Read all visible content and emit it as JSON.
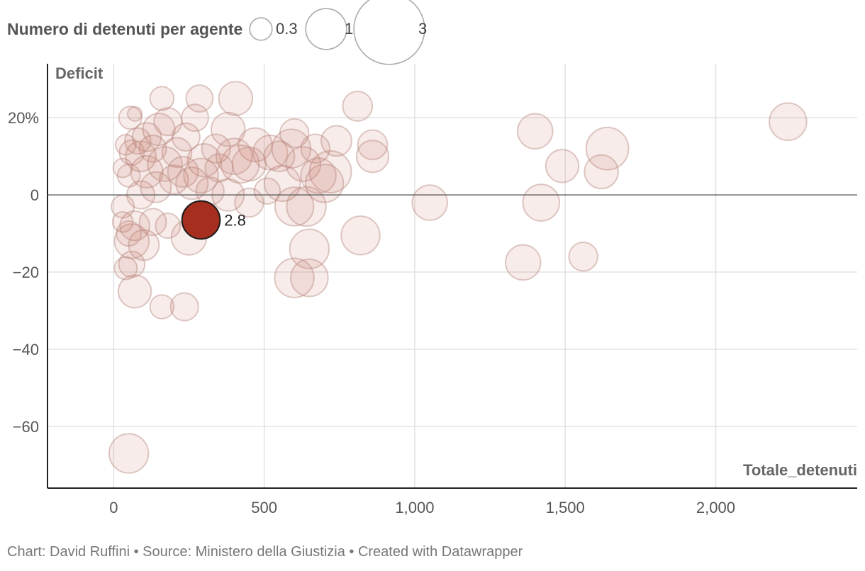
{
  "legend": {
    "title": "Numero di detenuti per agente",
    "items": [
      {
        "label": "0.3",
        "size": 0.3
      },
      {
        "label": "1",
        "size": 1
      },
      {
        "label": "3",
        "size": 3
      }
    ]
  },
  "footer": {
    "text": "Chart: David Ruffini • Source: Ministero della Giustizia • Created with Datawrapper"
  },
  "colors": {
    "bubble_fill": "#c77a6a",
    "bubble_stroke": "#b98a80",
    "highlight_fill": "#a62e1e",
    "highlight_stroke": "#1a1a1a",
    "grid": "#e2e2e2",
    "zero_line": "#666666",
    "axis": "#222222"
  },
  "chart_data": {
    "type": "scatter",
    "xlabel": "Totale_detenuti",
    "ylabel": "Deficit",
    "x_ticks": [
      {
        "value": 0,
        "label": "0"
      },
      {
        "value": 500,
        "label": "500"
      },
      {
        "value": 1000,
        "label": "1,000"
      },
      {
        "value": 1500,
        "label": "1,500"
      },
      {
        "value": 2000,
        "label": "2,000"
      }
    ],
    "y_ticks": [
      {
        "value": 20,
        "label": "20%"
      },
      {
        "value": 0,
        "label": "0"
      },
      {
        "value": -20,
        "label": "−20"
      },
      {
        "value": -40,
        "label": "−40"
      },
      {
        "value": -60,
        "label": "−60"
      }
    ],
    "xlim": [
      -220,
      2470
    ],
    "ylim": [
      -76,
      34
    ],
    "grid": true,
    "legend_position": "top-left",
    "size_variable": "Numero di detenuti per agente",
    "highlight": {
      "x": 290,
      "y": -6.5,
      "size": 2.8,
      "label": "2.8"
    },
    "points": [
      {
        "x": 55,
        "y": 20,
        "size": 1
      },
      {
        "x": 70,
        "y": 21,
        "size": 0.4
      },
      {
        "x": 160,
        "y": 25,
        "size": 1.1
      },
      {
        "x": 285,
        "y": 25,
        "size": 1.4
      },
      {
        "x": 405,
        "y": 25,
        "size": 2.2
      },
      {
        "x": 810,
        "y": 23,
        "size": 1.7
      },
      {
        "x": 1400,
        "y": 16.5,
        "size": 2.4
      },
      {
        "x": 2240,
        "y": 19,
        "size": 2.7
      },
      {
        "x": 1640,
        "y": 12,
        "size": 3.5
      },
      {
        "x": 1490,
        "y": 7.5,
        "size": 2.1
      },
      {
        "x": 1620,
        "y": 6,
        "size": 2.2
      },
      {
        "x": 1420,
        "y": -2,
        "size": 2.6
      },
      {
        "x": 1050,
        "y": -2,
        "size": 2.4
      },
      {
        "x": 1360,
        "y": -17.5,
        "size": 2.4
      },
      {
        "x": 1560,
        "y": -16,
        "size": 1.6
      },
      {
        "x": 820,
        "y": -10.5,
        "size": 2.9
      },
      {
        "x": 650,
        "y": -14,
        "size": 3
      },
      {
        "x": 600,
        "y": -21.5,
        "size": 3
      },
      {
        "x": 650,
        "y": -21.5,
        "size": 2.7
      },
      {
        "x": 70,
        "y": -25,
        "size": 2.1
      },
      {
        "x": 160,
        "y": -29,
        "size": 1.1
      },
      {
        "x": 235,
        "y": -29,
        "size": 1.5
      },
      {
        "x": 50,
        "y": -67,
        "size": 3
      },
      {
        "x": 40,
        "y": -19,
        "size": 1
      },
      {
        "x": 60,
        "y": -18,
        "size": 1.3
      },
      {
        "x": 60,
        "y": -12,
        "size": 2.3
      },
      {
        "x": 100,
        "y": -13,
        "size": 1.8
      },
      {
        "x": 70,
        "y": -8,
        "size": 1.7
      },
      {
        "x": 130,
        "y": -7,
        "size": 1.4
      },
      {
        "x": 180,
        "y": -8,
        "size": 1.2
      },
      {
        "x": 250,
        "y": -11,
        "size": 2.4
      },
      {
        "x": 30,
        "y": -3,
        "size": 1
      },
      {
        "x": 90,
        "y": 0,
        "size": 1.5
      },
      {
        "x": 140,
        "y": 2,
        "size": 1.8
      },
      {
        "x": 200,
        "y": 4,
        "size": 1.6
      },
      {
        "x": 260,
        "y": 3,
        "size": 2
      },
      {
        "x": 320,
        "y": 1,
        "size": 1.5
      },
      {
        "x": 380,
        "y": 0,
        "size": 2
      },
      {
        "x": 450,
        "y": -2,
        "size": 1.6
      },
      {
        "x": 510,
        "y": 1,
        "size": 1.3
      },
      {
        "x": 560,
        "y": 3,
        "size": 2.5
      },
      {
        "x": 600,
        "y": -3,
        "size": 2.9
      },
      {
        "x": 640,
        "y": -3,
        "size": 3
      },
      {
        "x": 680,
        "y": 5,
        "size": 2.4
      },
      {
        "x": 720,
        "y": 6,
        "size": 3.4
      },
      {
        "x": 700,
        "y": 3,
        "size": 2.8
      },
      {
        "x": 860,
        "y": 13,
        "size": 1.7
      },
      {
        "x": 860,
        "y": 10,
        "size": 2
      },
      {
        "x": 740,
        "y": 14,
        "size": 1.8
      },
      {
        "x": 600,
        "y": 16,
        "size": 1.6
      },
      {
        "x": 590,
        "y": 12,
        "size": 2.9
      },
      {
        "x": 520,
        "y": 11,
        "size": 2.3
      },
      {
        "x": 470,
        "y": 13,
        "size": 2.2
      },
      {
        "x": 420,
        "y": 8,
        "size": 2.8
      },
      {
        "x": 380,
        "y": 17,
        "size": 2.2
      },
      {
        "x": 340,
        "y": 12,
        "size": 1.6
      },
      {
        "x": 300,
        "y": 9,
        "size": 2.1
      },
      {
        "x": 270,
        "y": 20,
        "size": 1.4
      },
      {
        "x": 240,
        "y": 15,
        "size": 1.5
      },
      {
        "x": 210,
        "y": 11,
        "size": 1.7
      },
      {
        "x": 180,
        "y": 19,
        "size": 1.5
      },
      {
        "x": 150,
        "y": 17,
        "size": 2
      },
      {
        "x": 130,
        "y": 12,
        "size": 1.4
      },
      {
        "x": 110,
        "y": 15,
        "size": 1.6
      },
      {
        "x": 90,
        "y": 10,
        "size": 1.8
      },
      {
        "x": 80,
        "y": 14,
        "size": 1.3
      },
      {
        "x": 60,
        "y": 11,
        "size": 1.2
      },
      {
        "x": 40,
        "y": 13,
        "size": 0.8
      },
      {
        "x": 30,
        "y": 7,
        "size": 0.7
      },
      {
        "x": 50,
        "y": 5,
        "size": 1
      },
      {
        "x": 110,
        "y": 6,
        "size": 2
      },
      {
        "x": 170,
        "y": 8,
        "size": 2.3
      },
      {
        "x": 230,
        "y": 6,
        "size": 1.8
      },
      {
        "x": 290,
        "y": 5,
        "size": 2.3
      },
      {
        "x": 350,
        "y": 7,
        "size": 1.5
      },
      {
        "x": 400,
        "y": 10,
        "size": 2.5
      },
      {
        "x": 450,
        "y": 8,
        "size": 2.2
      },
      {
        "x": 550,
        "y": 10,
        "size": 1.8
      },
      {
        "x": 630,
        "y": 8,
        "size": 2.3
      },
      {
        "x": 670,
        "y": 12,
        "size": 1.6
      },
      {
        "x": 30,
        "y": -7,
        "size": 0.8
      },
      {
        "x": 50,
        "y": -10,
        "size": 1.2
      }
    ]
  }
}
